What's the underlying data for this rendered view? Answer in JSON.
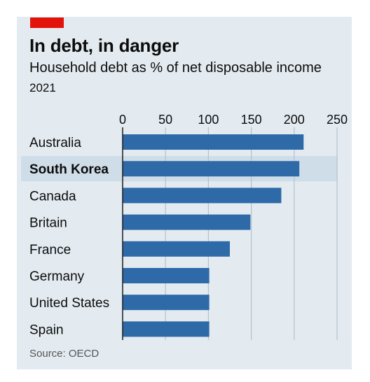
{
  "title": "In debt, in danger",
  "subtitle": "Household debt as % of net disposable income",
  "year": "2021",
  "source": "Source: OECD",
  "colors": {
    "bar": "#2e6aa8",
    "highlight_band": "#cfdde8",
    "grid": "#b6c1ca",
    "axis": "#1a1a1a",
    "accent": "#e3120b"
  },
  "chart_data": {
    "type": "bar",
    "orientation": "horizontal",
    "title": "In debt, in danger",
    "subtitle": "Household debt as % of net disposable income",
    "categories": [
      "Australia",
      "South Korea",
      "Canada",
      "Britain",
      "France",
      "Germany",
      "United States",
      "Spain"
    ],
    "values": [
      211,
      206,
      185,
      149,
      125,
      101,
      101,
      101
    ],
    "highlight": "South Korea",
    "xlim": [
      0,
      250
    ],
    "xticks": [
      "0",
      "50",
      "100",
      "150",
      "200",
      "250"
    ],
    "grid": true,
    "legend": "none"
  }
}
